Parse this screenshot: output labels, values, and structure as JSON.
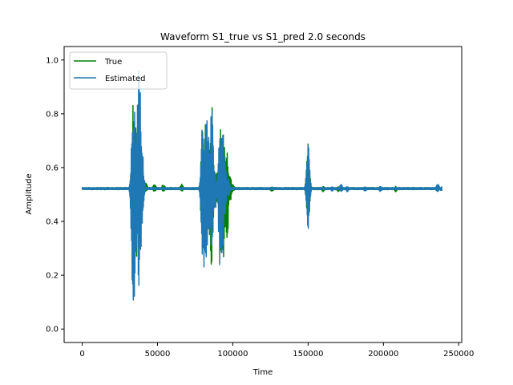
{
  "chart_data": {
    "type": "line",
    "title": "Waveform S1_true vs S1_pred 2.0 seconds",
    "xlabel": "Time",
    "ylabel": "Amplitude",
    "xlim": [
      -12000,
      252000
    ],
    "ylim": [
      -0.05,
      1.05
    ],
    "xticks": [
      0,
      50000,
      100000,
      150000,
      200000,
      250000
    ],
    "xtick_labels": [
      "0",
      "50000",
      "100000",
      "150000",
      "200000",
      "250000"
    ],
    "yticks": [
      0.0,
      0.2,
      0.4,
      0.6,
      0.8,
      1.0
    ],
    "ytick_labels": [
      "0.0",
      "0.2",
      "0.4",
      "0.6",
      "0.8",
      "1.0"
    ],
    "grid": false,
    "legend_position": "top-left",
    "baseline": 0.522,
    "x_max": 239000,
    "series": [
      {
        "name": "True",
        "color": "#008000",
        "bursts": [
          {
            "x": 34000,
            "min": 0.3,
            "max": 0.85
          },
          {
            "x": 36000,
            "min": 0.24,
            "max": 0.79
          },
          {
            "x": 38000,
            "min": 0.3,
            "max": 0.75
          },
          {
            "x": 40000,
            "min": 0.47,
            "max": 0.59
          },
          {
            "x": 42000,
            "min": 0.51,
            "max": 0.55
          },
          {
            "x": 48000,
            "min": 0.51,
            "max": 0.54
          },
          {
            "x": 54000,
            "min": 0.51,
            "max": 0.54
          },
          {
            "x": 66000,
            "min": 0.51,
            "max": 0.54
          },
          {
            "x": 80000,
            "min": 0.25,
            "max": 0.77
          },
          {
            "x": 82000,
            "min": 0.28,
            "max": 0.77
          },
          {
            "x": 84000,
            "min": 0.31,
            "max": 0.73
          },
          {
            "x": 86000,
            "min": 0.2,
            "max": 0.84
          },
          {
            "x": 89000,
            "min": 0.45,
            "max": 0.6
          },
          {
            "x": 92000,
            "min": 0.23,
            "max": 0.77
          },
          {
            "x": 94000,
            "min": 0.26,
            "max": 0.76
          },
          {
            "x": 96000,
            "min": 0.24,
            "max": 0.71
          },
          {
            "x": 98000,
            "min": 0.46,
            "max": 0.58
          },
          {
            "x": 100000,
            "min": 0.51,
            "max": 0.54
          },
          {
            "x": 126000,
            "min": 0.51,
            "max": 0.53
          },
          {
            "x": 150000,
            "min": 0.38,
            "max": 0.69
          },
          {
            "x": 160000,
            "min": 0.51,
            "max": 0.53
          },
          {
            "x": 170000,
            "min": 0.51,
            "max": 0.53
          },
          {
            "x": 198000,
            "min": 0.51,
            "max": 0.53
          },
          {
            "x": 208000,
            "min": 0.51,
            "max": 0.53
          },
          {
            "x": 236000,
            "min": 0.51,
            "max": 0.53
          }
        ]
      },
      {
        "name": "Estimated",
        "color": "#1f77b4",
        "bursts": [
          {
            "x": 33500,
            "min": 0.15,
            "max": 0.79
          },
          {
            "x": 34500,
            "min": 0.0,
            "max": 0.85
          },
          {
            "x": 35500,
            "min": 0.25,
            "max": 0.8
          },
          {
            "x": 36500,
            "min": 0.27,
            "max": 0.75
          },
          {
            "x": 37500,
            "min": 0.15,
            "max": 1.0
          },
          {
            "x": 38500,
            "min": 0.23,
            "max": 0.91
          },
          {
            "x": 39500,
            "min": 0.33,
            "max": 0.74
          },
          {
            "x": 40500,
            "min": 0.48,
            "max": 0.58
          },
          {
            "x": 80000,
            "min": 0.22,
            "max": 0.78
          },
          {
            "x": 81000,
            "min": 0.15,
            "max": 0.75
          },
          {
            "x": 82500,
            "min": 0.26,
            "max": 0.81
          },
          {
            "x": 84000,
            "min": 0.29,
            "max": 0.72
          },
          {
            "x": 86000,
            "min": 0.21,
            "max": 0.84
          },
          {
            "x": 88000,
            "min": 0.43,
            "max": 0.61
          },
          {
            "x": 91500,
            "min": 0.23,
            "max": 0.74
          },
          {
            "x": 93000,
            "min": 0.26,
            "max": 0.74
          },
          {
            "x": 94500,
            "min": 0.4,
            "max": 0.65
          },
          {
            "x": 97000,
            "min": 0.49,
            "max": 0.56
          },
          {
            "x": 150000,
            "min": 0.37,
            "max": 0.69
          },
          {
            "x": 166000,
            "min": 0.51,
            "max": 0.53
          },
          {
            "x": 172000,
            "min": 0.51,
            "max": 0.54
          },
          {
            "x": 176000,
            "min": 0.51,
            "max": 0.53
          },
          {
            "x": 188000,
            "min": 0.51,
            "max": 0.53
          },
          {
            "x": 198000,
            "min": 0.51,
            "max": 0.53
          },
          {
            "x": 236000,
            "min": 0.51,
            "max": 0.54
          },
          {
            "x": 239000,
            "min": 0.51,
            "max": 0.53
          }
        ]
      }
    ]
  }
}
